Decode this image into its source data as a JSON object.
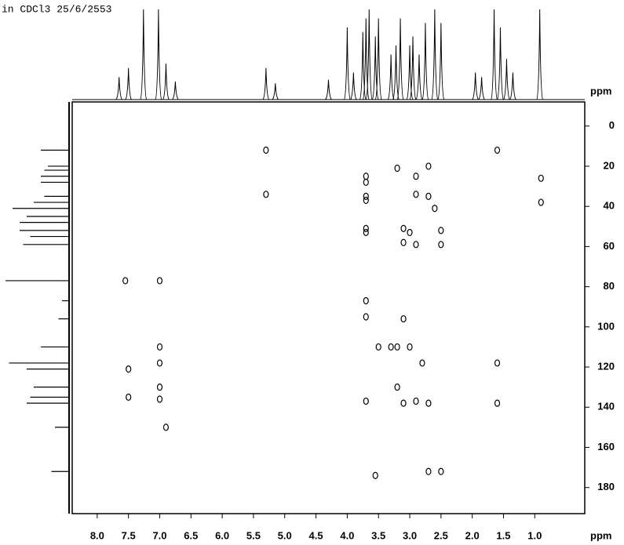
{
  "chart_data": {
    "type": "contour",
    "title": "in CDCl3 25/6/2553",
    "x_label": "ppm",
    "y_label": "ppm",
    "xlim": [
      8.4,
      0.2
    ],
    "ylim": [
      -12,
      193
    ],
    "xticks": [
      {
        "value": 8,
        "label": "8.0"
      },
      7.5,
      {
        "value": 7,
        "label": "7.0"
      },
      6.5,
      {
        "value": 6,
        "label": "6.0"
      },
      5.5,
      {
        "value": 5,
        "label": "5.0"
      },
      4.5,
      {
        "value": 4,
        "label": "4.0"
      },
      3.5,
      {
        "value": 3,
        "label": "3.0"
      },
      2.5,
      {
        "value": 2,
        "label": "2.0"
      },
      1.5,
      {
        "value": 1,
        "label": "1.0"
      }
    ],
    "yticks": [
      0,
      20,
      40,
      60,
      80,
      100,
      120,
      140,
      160,
      180
    ],
    "color": "#000000",
    "x": [
      5.3,
      1.6,
      3.7,
      3.7,
      2.9,
      2.7,
      3.2,
      0.9,
      5.3,
      3.7,
      3.7,
      2.9,
      2.7,
      0.9,
      2.6,
      3.7,
      3.7,
      3.1,
      3.0,
      2.5,
      2.9,
      2.5,
      3.1,
      7.55,
      7.0,
      3.7,
      3.1,
      3.7,
      7.0,
      3.5,
      3.3,
      3.2,
      3.0,
      2.8,
      1.6,
      7.0,
      7.5,
      7.0,
      7.5,
      7.0,
      3.2,
      3.1,
      2.9,
      2.7,
      1.6,
      3.7,
      6.9,
      3.55,
      2.7,
      2.5
    ],
    "values": [
      12,
      12,
      25,
      28,
      25,
      20,
      21,
      26,
      34,
      35,
      37,
      34,
      35,
      38,
      41,
      51,
      53,
      51,
      53,
      52,
      59,
      59,
      58,
      77,
      77,
      87,
      96,
      95,
      110,
      110,
      110,
      110,
      110,
      118,
      118,
      118,
      121,
      130,
      135,
      136,
      130,
      138,
      137,
      138,
      138,
      137,
      150,
      174,
      172,
      172
    ],
    "top_projection": {
      "x": [
        7.65,
        7.5,
        7.26,
        7.02,
        6.9,
        6.75,
        5.3,
        5.15,
        4.3,
        4.0,
        3.9,
        3.75,
        3.7,
        3.65,
        3.55,
        3.5,
        3.3,
        3.22,
        3.15,
        3.0,
        2.95,
        2.85,
        2.75,
        2.6,
        2.5,
        1.95,
        1.85,
        1.65,
        1.55,
        1.45,
        1.35,
        0.92
      ],
      "values": [
        25,
        35,
        100,
        100,
        40,
        20,
        35,
        18,
        22,
        80,
        30,
        75,
        90,
        100,
        70,
        90,
        50,
        60,
        90,
        60,
        70,
        50,
        85,
        100,
        85,
        30,
        25,
        100,
        80,
        45,
        30,
        100
      ]
    },
    "left_projection": {
      "x": [
        12,
        20,
        22,
        25,
        28,
        35,
        38,
        41,
        45,
        48,
        52,
        55,
        59,
        77,
        87,
        96,
        110,
        118,
        121,
        130,
        135,
        138,
        150,
        172
      ],
      "values": [
        40,
        30,
        35,
        40,
        40,
        35,
        50,
        80,
        60,
        70,
        70,
        55,
        65,
        90,
        10,
        15,
        40,
        85,
        60,
        50,
        55,
        60,
        20,
        25
      ]
    }
  }
}
